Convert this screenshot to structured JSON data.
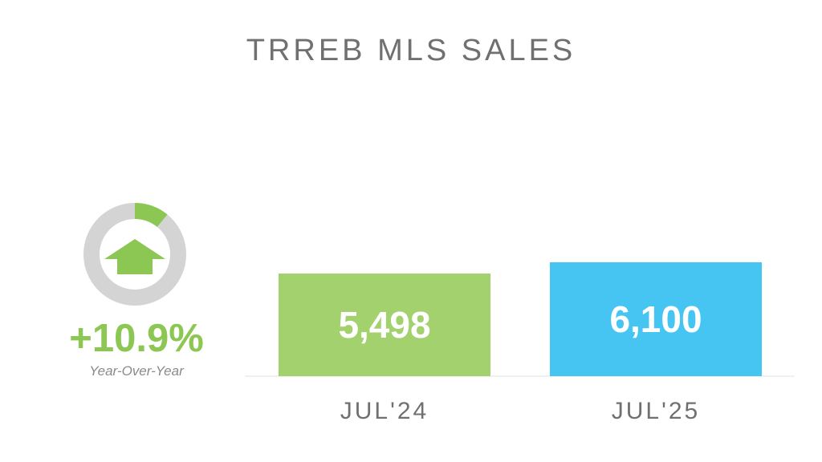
{
  "title": "TRREB MLS SALES",
  "yoy": {
    "value_label": "+10.9%",
    "caption": "Year-Over-Year",
    "ring_fill_fraction": 0.109,
    "colors": {
      "positive": "#8cc653",
      "ring_track": "#d4d4d4"
    },
    "icon": "arrow-up-icon"
  },
  "chart_data": {
    "type": "bar",
    "title": "TRREB MLS SALES",
    "categories": [
      "JUL'24",
      "JUL'25"
    ],
    "values": [
      5498,
      6100
    ],
    "value_labels": [
      "5,498",
      "6,100"
    ],
    "colors": [
      "#a3d16e",
      "#47c5f2"
    ],
    "xlabel": "",
    "ylabel": "",
    "grid": false
  }
}
